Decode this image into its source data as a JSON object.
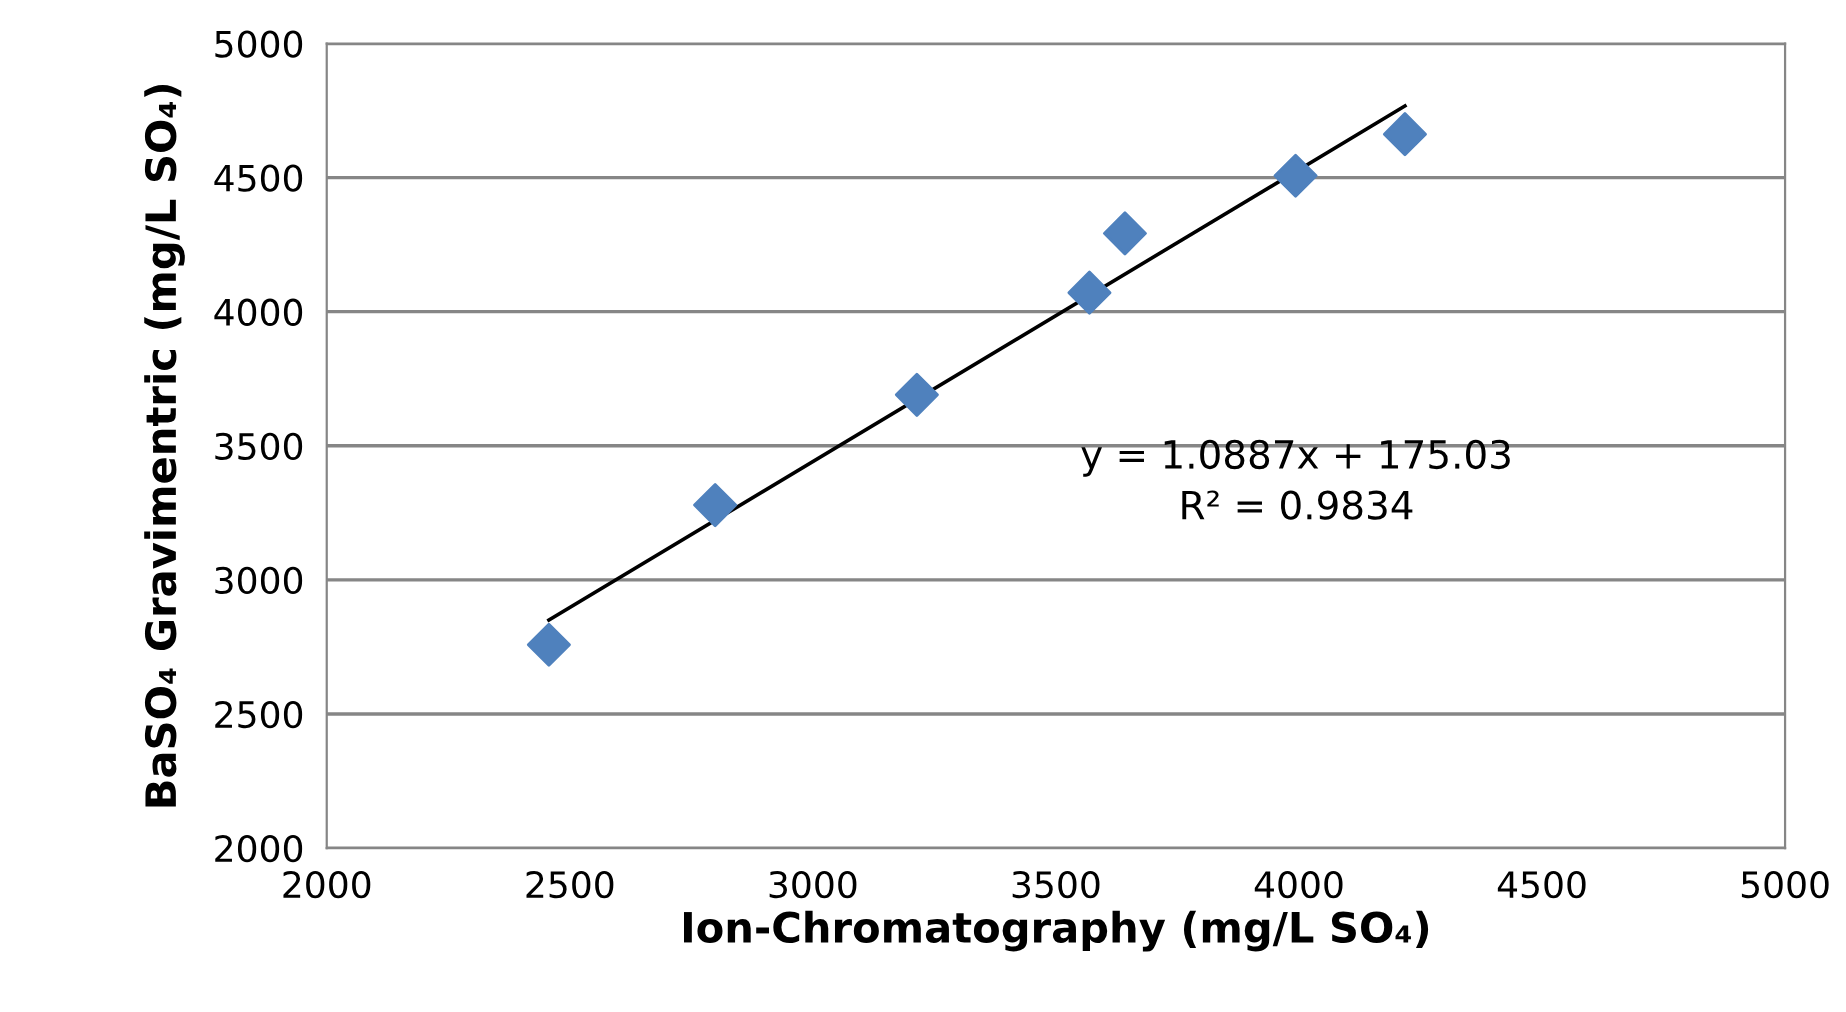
{
  "chart_data": {
    "type": "scatter",
    "xlabel": "Ion-Chromatography (mg/L SO₄)",
    "ylabel": "BaSO₄ Gravimentric (mg/L SO₄)",
    "x": [
      2457,
      2799,
      3214,
      3569,
      3642,
      3993,
      4218
    ],
    "series": [
      {
        "color": "#4f81bd",
        "marker": "diamond",
        "values": [
          2758,
          3279,
          3690,
          4071,
          4292,
          4507,
          4662
        ]
      },
      {
        "type": "line",
        "color": "#000000",
        "marker": "none",
        "x": [
          2457,
          4218
        ],
        "values": [
          2850,
          4767
        ]
      }
    ],
    "xlim": [
      2000,
      5000
    ],
    "xticks": [
      2000,
      2500,
      3000,
      3500,
      4000,
      4500,
      5000
    ],
    "ylim": [
      2000,
      5000
    ],
    "yticks": [
      2000,
      2500,
      3000,
      3500,
      4000,
      4500,
      5000
    ],
    "grid": "y",
    "legend": false,
    "annotations": [
      "y = 1.0887x + 175.03",
      "R² = 0.9834"
    ]
  }
}
